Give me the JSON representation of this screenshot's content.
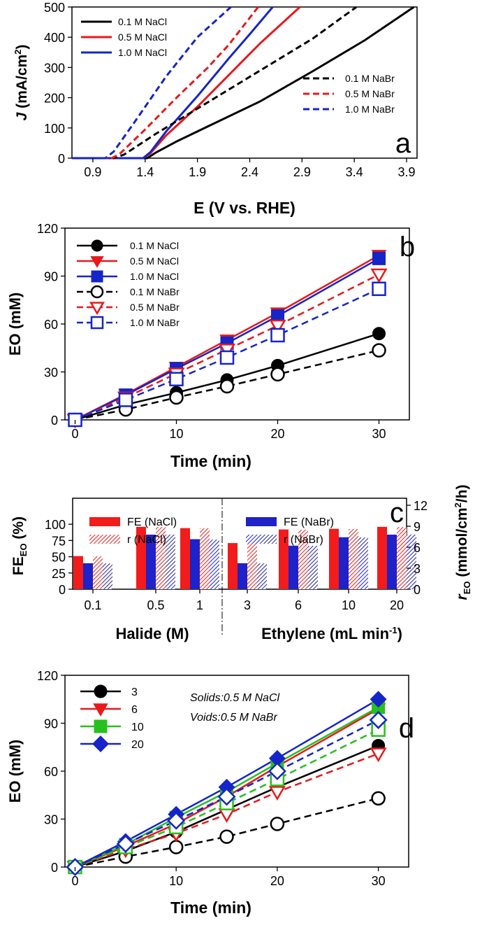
{
  "chart_data": [
    {
      "panel": "a",
      "type": "line",
      "xlabel": "E (V vs. RHE)",
      "ylabel_main": "J",
      "ylabel_rest": " (mA/cm",
      "ylabel_sup": "2",
      "ylabel_close": ")",
      "xlim": [
        0.7,
        4.0
      ],
      "ylim": [
        0,
        500
      ],
      "xticks": [
        0.9,
        1.4,
        1.9,
        2.4,
        2.9,
        3.4,
        3.9
      ],
      "xtick_labels": [
        "0.9",
        "1.4",
        "1.9",
        "2.4",
        "2.9",
        "3.4",
        "3.9"
      ],
      "yticks": [
        0,
        100,
        200,
        300,
        400,
        500
      ],
      "ytick_labels": [
        "0",
        "100",
        "200",
        "300",
        "400",
        "500"
      ],
      "legends": {
        "solid": [
          "0.1 M NaCl",
          "0.5 M NaCl",
          "1.0 M NaCl"
        ],
        "dashed": [
          "0.1 M NaBr",
          "0.5 M NaBr",
          "1.0 M NaBr"
        ]
      },
      "series": [
        {
          "name": "0.1 M NaCl",
          "color": "#000000",
          "dash": false,
          "x": [
            0.7,
            1.42,
            1.5,
            1.7,
            2.0,
            2.5,
            3.0,
            3.5,
            3.97
          ],
          "y": [
            0,
            0,
            18,
            55,
            105,
            188,
            287,
            390,
            500
          ]
        },
        {
          "name": "0.5 M NaCl",
          "color": "#e8191c",
          "dash": false,
          "x": [
            0.7,
            1.38,
            1.45,
            1.6,
            1.9,
            2.2,
            2.5,
            2.88
          ],
          "y": [
            0,
            0,
            16,
            75,
            170,
            275,
            380,
            500
          ]
        },
        {
          "name": "1.0 M NaCl",
          "color": "#1525c8",
          "dash": false,
          "x": [
            0.7,
            1.38,
            1.45,
            1.6,
            1.9,
            2.2,
            2.4,
            2.62
          ],
          "y": [
            0,
            0,
            20,
            88,
            205,
            330,
            410,
            500
          ]
        },
        {
          "name": "0.1 M NaBr",
          "color": "#000000",
          "dash": true,
          "x": [
            0.7,
            1.1,
            1.2,
            1.5,
            2.0,
            2.5,
            3.0,
            3.42
          ],
          "y": [
            0,
            0,
            12,
            80,
            185,
            290,
            395,
            500
          ]
        },
        {
          "name": "0.5 M NaBr",
          "color": "#e8191c",
          "dash": true,
          "x": [
            0.7,
            1.08,
            1.15,
            1.4,
            1.7,
            2.0,
            2.2,
            2.48
          ],
          "y": [
            0,
            0,
            12,
            95,
            200,
            300,
            375,
            500
          ]
        },
        {
          "name": "1.0 M NaBr",
          "color": "#1525c8",
          "dash": true,
          "x": [
            0.7,
            1.02,
            1.1,
            1.3,
            1.6,
            1.9,
            2.22
          ],
          "y": [
            0,
            0,
            22,
            120,
            270,
            400,
            500
          ]
        }
      ],
      "panel_letter": "a"
    },
    {
      "panel": "b",
      "type": "line",
      "xlabel": "Time (min)",
      "ylabel": "EO (mM)",
      "xlim": [
        -1,
        33
      ],
      "ylim": [
        0,
        120
      ],
      "xticks": [
        0,
        10,
        20,
        30
      ],
      "xtick_labels": [
        "0",
        "10",
        "20",
        "30"
      ],
      "yticks": [
        0,
        30,
        60,
        90,
        120
      ],
      "ytick_labels": [
        "0",
        "30",
        "60",
        "90",
        "120"
      ],
      "x": [
        0,
        5,
        10,
        15,
        20,
        30
      ],
      "series": [
        {
          "name": "0.1 M NaCl",
          "color": "#000000",
          "dash": false,
          "marker": "circle",
          "filled": true,
          "values": [
            0,
            9.5,
            17,
            25,
            34,
            54
          ]
        },
        {
          "name": "0.5 M NaCl",
          "color": "#e8191c",
          "dash": false,
          "marker": "triangle-down",
          "filled": true,
          "values": [
            0,
            16,
            33,
            50,
            67,
            103
          ]
        },
        {
          "name": "1.0 M NaCl",
          "color": "#1525c8",
          "dash": false,
          "marker": "square",
          "filled": true,
          "values": [
            0,
            15.5,
            32,
            48,
            65,
            101
          ]
        },
        {
          "name": "0.1 M NaBr",
          "color": "#000000",
          "dash": true,
          "marker": "circle",
          "filled": false,
          "values": [
            0,
            6.5,
            14,
            21,
            28.5,
            43.5
          ]
        },
        {
          "name": "0.5 M NaBr",
          "color": "#e8191c",
          "dash": true,
          "marker": "triangle-down",
          "filled": false,
          "values": [
            0,
            14,
            29,
            44,
            59,
            91
          ]
        },
        {
          "name": "1.0 M NaBr",
          "color": "#1525c8",
          "dash": true,
          "marker": "square",
          "filled": false,
          "values": [
            0,
            12.5,
            25.5,
            39,
            53,
            82
          ]
        }
      ],
      "panel_letter": "b"
    },
    {
      "panel": "c",
      "type": "bar",
      "categories": [
        "0.1",
        "0.5",
        "1",
        "3",
        "6",
        "10",
        "20"
      ],
      "group_labels": [
        "Halide (M)",
        "Ethylene (mL min",
        "-1",
        ")"
      ],
      "ylabel_left_main": "FE",
      "ylabel_left_sub": "EO",
      "ylabel_left_rest": " (%)",
      "ylabel_right_main": "r",
      "ylabel_right_sub": "EO",
      "ylabel_right_rest": " (mmol/cm",
      "ylabel_right_sup": "2",
      "ylabel_right_close": "/h)",
      "ylim_left": [
        0,
        140
      ],
      "ylim_right": [
        0,
        13
      ],
      "yticks_left": [
        0,
        25,
        50,
        75,
        100
      ],
      "ytick_labels_left": [
        "0",
        "25",
        "50",
        "75",
        "100"
      ],
      "yticks_right": [
        0,
        3,
        6,
        9,
        12
      ],
      "ytick_labels_right": [
        "0",
        "3",
        "6",
        "9",
        "12"
      ],
      "series": [
        {
          "name": "FE (NaCl)",
          "color": "#f21c1c",
          "hatched": false,
          "axis": "left",
          "values": [
            51,
            96,
            94,
            71,
            92,
            93,
            96
          ]
        },
        {
          "name": "FE (NaBr)",
          "color": "#1e22c8",
          "hatched": false,
          "axis": "left",
          "values": [
            40,
            84,
            77,
            40,
            67,
            80,
            84
          ]
        },
        {
          "name": "r (NaCl)",
          "color": "#f21c1c",
          "hatched": true,
          "axis": "right",
          "values": [
            4.7,
            8.9,
            8.7,
            6.5,
            8.5,
            8.6,
            8.9
          ]
        },
        {
          "name": "r (NaBr)",
          "color": "#1e22c8",
          "hatched": true,
          "axis": "right",
          "values": [
            3.7,
            7.8,
            7.1,
            3.7,
            6.2,
            7.4,
            7.8
          ]
        }
      ],
      "panel_letter": "c"
    },
    {
      "panel": "d",
      "type": "line",
      "xlabel": "Time (min)",
      "ylabel": "EO (mM)",
      "xlim": [
        -1,
        33
      ],
      "ylim": [
        0,
        120
      ],
      "xticks": [
        0,
        10,
        20,
        30
      ],
      "xtick_labels": [
        "0",
        "10",
        "20",
        "30"
      ],
      "yticks": [
        0,
        30,
        60,
        90,
        120
      ],
      "ytick_labels": [
        "0",
        "30",
        "60",
        "90",
        "120"
      ],
      "annotations": [
        "Solids:0.5 M NaCl",
        "Voids:0.5 M NaBr"
      ],
      "x": [
        0,
        5,
        10,
        15,
        20,
        30
      ],
      "series": [
        {
          "name": "3",
          "color": "#000000",
          "dash": false,
          "marker": "circle",
          "filled": true,
          "values": [
            0,
            10,
            22,
            36,
            50,
            76
          ]
        },
        {
          "name": "6",
          "color": "#e8191c",
          "dash": false,
          "marker": "triangle-down",
          "filled": true,
          "values": [
            0,
            13,
            27,
            44,
            63,
            99
          ]
        },
        {
          "name": "10",
          "color": "#27c01e",
          "dash": false,
          "marker": "square",
          "filled": true,
          "values": [
            0,
            14,
            31,
            47,
            65,
            100
          ]
        },
        {
          "name": "20",
          "color": "#1525c8",
          "dash": false,
          "marker": "diamond",
          "filled": true,
          "values": [
            0,
            16,
            33,
            50,
            68,
            105
          ]
        },
        {
          "name": "3 (NaBr)",
          "color": "#000000",
          "dash": true,
          "marker": "circle",
          "filled": false,
          "values": [
            0,
            6.5,
            12.5,
            19,
            27,
            43
          ]
        },
        {
          "name": "6 (NaBr)",
          "color": "#e8191c",
          "dash": true,
          "marker": "triangle-down",
          "filled": false,
          "values": [
            0,
            11,
            21,
            33,
            47,
            71
          ]
        },
        {
          "name": "10 (NaBr)",
          "color": "#27c01e",
          "dash": true,
          "marker": "square",
          "filled": false,
          "values": [
            0,
            12.5,
            25,
            40,
            55,
            86
          ]
        },
        {
          "name": "20 (NaBr)",
          "color": "#1525c8",
          "dash": true,
          "marker": "diamond",
          "filled": false,
          "values": [
            0,
            14.5,
            29,
            44,
            60,
            92
          ]
        }
      ],
      "legend": [
        "3",
        "6",
        "10",
        "20"
      ],
      "panel_letter": "d"
    }
  ]
}
